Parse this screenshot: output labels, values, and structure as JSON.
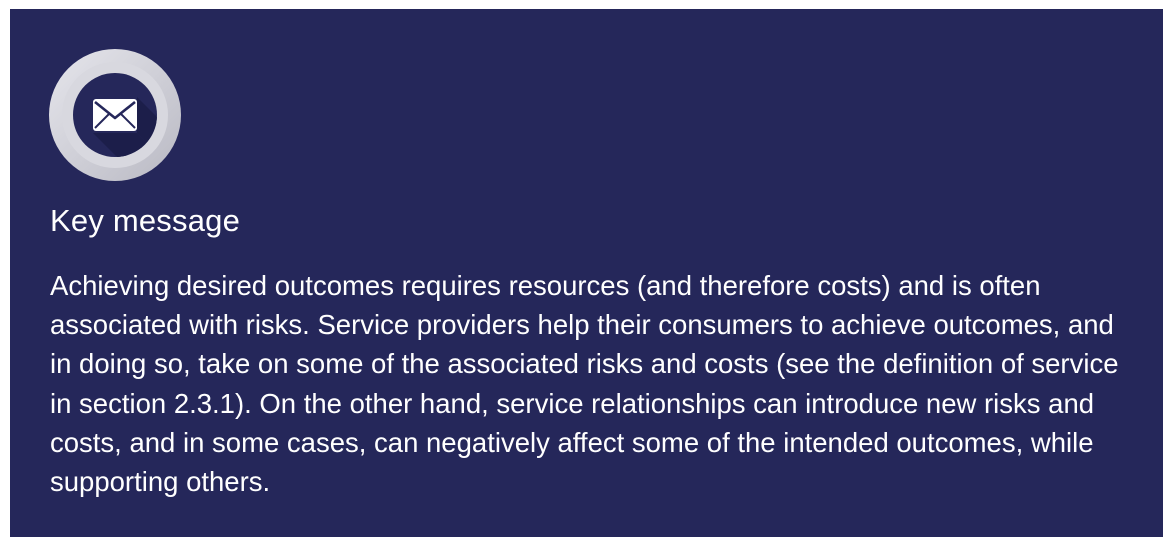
{
  "key_message": {
    "icon": "envelope-icon",
    "heading": "Key message",
    "body": "Achieving desired outcomes requires resources (and therefore costs) and is often associated with risks. Service providers help their consumers to achieve outcomes, and in doing so, take on some of the associated risks and costs (see the definition of service in section 2.3.1). On the other hand, service relationships can introduce new risks and costs, and in some cases, can negatively affect some of the intended outcomes, while supporting others."
  },
  "colors": {
    "panel_background": "#25275a",
    "text": "#ffffff",
    "icon_ring": "#cfcfd6",
    "icon_inner": "#25275a"
  }
}
